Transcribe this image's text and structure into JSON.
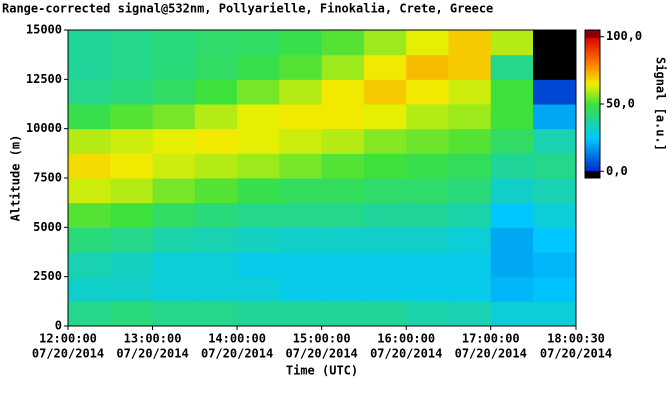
{
  "chart_data": {
    "type": "heatmap",
    "title": "Range-corrected signal@532nm, Pollyarielle, Finokalia, Crete, Greece",
    "x_label": "Time (UTC)",
    "y_label": "Altitude (m)",
    "colorbar_label": "Signal [a.u.]",
    "x": [
      12.25,
      12.75,
      13.25,
      13.75,
      14.25,
      14.75,
      15.25,
      15.75,
      16.25,
      16.75,
      17.25,
      17.75
    ],
    "y": [
      625,
      1875,
      3125,
      4375,
      5625,
      6875,
      8125,
      9375,
      10625,
      11875,
      13125,
      14375
    ],
    "z": [
      [
        40,
        42,
        40,
        40,
        38,
        38,
        38,
        38,
        36,
        35,
        30,
        30
      ],
      [
        32,
        32,
        30,
        30,
        30,
        28,
        28,
        28,
        28,
        28,
        22,
        24
      ],
      [
        35,
        33,
        30,
        30,
        28,
        28,
        28,
        28,
        28,
        28,
        20,
        22
      ],
      [
        42,
        40,
        36,
        35,
        33,
        32,
        32,
        32,
        32,
        30,
        20,
        25
      ],
      [
        52,
        50,
        45,
        42,
        40,
        40,
        40,
        38,
        38,
        36,
        25,
        30
      ],
      [
        62,
        60,
        55,
        52,
        48,
        46,
        46,
        44,
        44,
        42,
        32,
        35
      ],
      [
        68,
        66,
        62,
        60,
        58,
        55,
        52,
        50,
        48,
        46,
        38,
        40
      ],
      [
        60,
        62,
        64,
        66,
        64,
        62,
        60,
        56,
        54,
        52,
        45,
        35
      ],
      [
        48,
        52,
        55,
        60,
        64,
        66,
        66,
        64,
        60,
        58,
        50,
        20
      ],
      [
        40,
        42,
        45,
        50,
        55,
        60,
        66,
        70,
        66,
        62,
        50,
        5
      ],
      [
        38,
        40,
        42,
        45,
        48,
        52,
        58,
        66,
        72,
        70,
        40,
        -5
      ],
      [
        38,
        40,
        42,
        44,
        45,
        48,
        52,
        58,
        64,
        70,
        60,
        -5
      ]
    ],
    "xlim": [
      12,
      18.0083
    ],
    "xticks": [
      {
        "value": 12,
        "label": "12:00:00"
      },
      {
        "value": 13,
        "label": "13:00:00"
      },
      {
        "value": 14,
        "label": "14:00:00"
      },
      {
        "value": 15,
        "label": "15:00:00"
      },
      {
        "value": 16,
        "label": "16:00:00"
      },
      {
        "value": 17,
        "label": "17:00:00"
      },
      {
        "value": 18.0083,
        "label": "18:00:30"
      }
    ],
    "xtick_dates": [
      "07/20/2014",
      "07/20/2014",
      "07/20/2014",
      "07/20/2014",
      "07/20/2014",
      "07/20/2014",
      "07/20/2014"
    ],
    "ylim": [
      0,
      15000
    ],
    "yticks": [
      0,
      2500,
      5000,
      7500,
      10000,
      12500,
      15000
    ],
    "clim": [
      -5,
      105
    ],
    "cticks": [
      {
        "value": 100,
        "label": "100,0"
      },
      {
        "value": 50,
        "label": "50,0"
      },
      {
        "value": 0,
        "label": "0,0"
      }
    ]
  }
}
